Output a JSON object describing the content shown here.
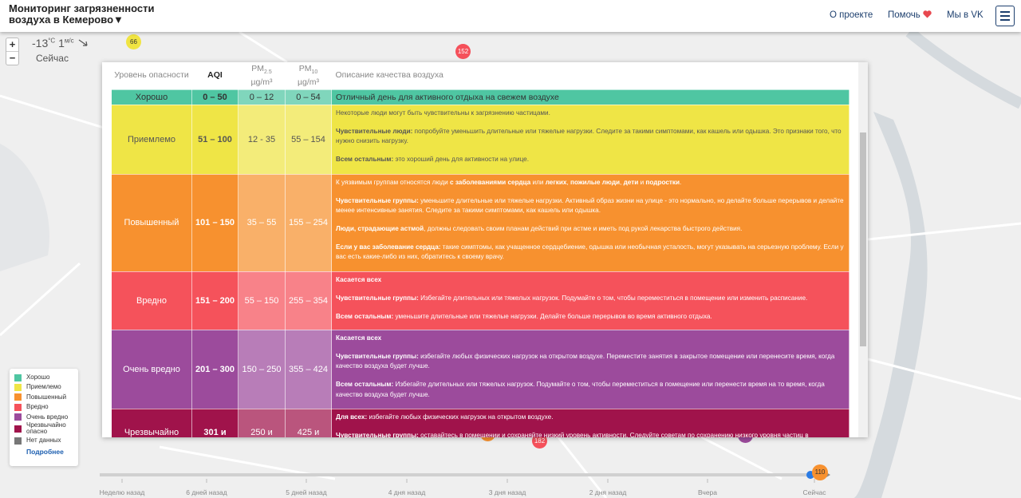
{
  "header": {
    "title_line1": "Мониторинг загрязненности",
    "title_line2": "воздуха в Кемерово▼",
    "nav": [
      "О проекте",
      "Помочь",
      "Мы в VK"
    ]
  },
  "map": {
    "zoom_in": "+",
    "zoom_out": "−",
    "weather": {
      "temp": "-13",
      "temp_unit": "°C",
      "wind": "1",
      "wind_unit": "м/с",
      "time": "Сейчас"
    },
    "markers": [
      {
        "value": "66",
        "color": "#f0e442"
      },
      {
        "value": "152",
        "color": "#f5505a"
      },
      {
        "value": "182",
        "color": "#f5505a"
      }
    ]
  },
  "table": {
    "headers": {
      "level": "Уровень опасности",
      "aqi": "AQI",
      "pm25": {
        "main": "PM",
        "sub": "2.5",
        "unit": "µg/m³"
      },
      "pm10": {
        "main": "PM",
        "sub": "10",
        "unit": "µg/m³"
      },
      "description": "Описание качества воздуха"
    },
    "rows": [
      {
        "level": "Хорошо",
        "aqi": "0 – 50",
        "pm25": "0 – 12",
        "pm10": "0 – 54",
        "color": "#4fc6a2",
        "text_color": "#333333",
        "description": [
          [
            {
              "t": "Отличный день для активного отдыха на свежем воздухе"
            }
          ]
        ]
      },
      {
        "level": "Приемлемо",
        "aqi": "51 – 100",
        "pm25": "12 - 35",
        "pm10": "55 – 154",
        "color": "#efe546",
        "text_color": "#555555",
        "description": [
          [
            {
              "t": "Некоторые люди могут быть чувствительны к загрязнению частицами."
            }
          ],
          [
            {
              "b": "Чувствительные люди:"
            },
            {
              "t": " попробуйте уменьшить длительные или тяжелые нагрузки. Следите за такими симптомами, как кашель или одышка. Это признаки того, что нужно снизить нагрузку."
            }
          ],
          [
            {
              "b": "Всем остальным:"
            },
            {
              "t": " это хороший день для активности на улице."
            }
          ]
        ]
      },
      {
        "level": "Повышенный",
        "aqi": "101 – 150",
        "pm25": "35 – 55",
        "pm10": "155 – 254",
        "color": "#f7912f",
        "text_color": "#ffffff",
        "description": [
          [
            {
              "t": "К уязвимым группам относятся люди "
            },
            {
              "b": "с заболеваниями сердца"
            },
            {
              "t": " или "
            },
            {
              "b": "легких"
            },
            {
              "t": ", "
            },
            {
              "b": "пожилые люди"
            },
            {
              "t": ", "
            },
            {
              "b": "дети"
            },
            {
              "t": " и "
            },
            {
              "b": "подростки"
            },
            {
              "t": "."
            }
          ],
          [
            {
              "b": "Чувствительные группы:"
            },
            {
              "t": " уменьшите длительные или тяжелые нагрузки. Активный образ жизни на улице - это нормально, но делайте больше перерывов и делайте менее интенсивные занятия. Следите за такими симптомами, как кашель или одышка."
            }
          ],
          [
            {
              "b": "Люди, страдающие астмой"
            },
            {
              "t": ", должны следовать своим планам действий при астме и иметь под рукой лекарства быстрого действия."
            }
          ],
          [
            {
              "b": "Если у вас заболевание сердца:"
            },
            {
              "t": " такие симптомы, как учащенное сердцебиение, одышка или необычная усталость, могут указывать на серьезную проблему. Если у вас есть какие-либо из них, обратитесь к своему врачу."
            }
          ]
        ]
      },
      {
        "level": "Вредно",
        "aqi": "151 – 200",
        "pm25": "55 – 150",
        "pm10": "255 – 354",
        "color": "#f5525b",
        "text_color": "#ffffff",
        "description": [
          [
            {
              "b": "Касается всех"
            }
          ],
          [
            {
              "b": "Чувствительные группы:"
            },
            {
              "t": " Избегайте длительных или тяжелых нагрузок. Подумайте о том, чтобы переместиться в помещение или изменить расписание."
            }
          ],
          [
            {
              "b": "Всем остальным:"
            },
            {
              "t": " уменьшите длительные или тяжелые нагрузки. Делайте больше перерывов во время активного отдыха."
            }
          ]
        ]
      },
      {
        "level": "Очень вредно",
        "aqi": "201 – 300",
        "pm25": "150 – 250",
        "pm10": "355 – 424",
        "color": "#9c4b9c",
        "text_color": "#ffffff",
        "description": [
          [
            {
              "b": "Касается всех"
            }
          ],
          [
            {
              "b": "Чувствительные группы:"
            },
            {
              "t": " избегайте любых физических нагрузок на открытом воздухе. Переместите занятия в закрытое помещение или перенесите время, когда качество воздуха будет лучше."
            }
          ],
          [
            {
              "b": "Всем остальным:"
            },
            {
              "t": " Избегайте длительных или тяжелых нагрузок. Подумайте о том, чтобы переместиться в помещение или перенести время на то время, когда качество воздуха будет лучше."
            }
          ]
        ]
      },
      {
        "level": "Чрезвычайно",
        "aqi": "301 и",
        "pm25": "250 и",
        "pm10": "425 и",
        "color": "#a0134b",
        "text_color": "#ffffff",
        "description": [
          [
            {
              "b": "Для всех:"
            },
            {
              "t": " избегайте любых физических нагрузок на открытом воздухе."
            }
          ],
          [
            {
              "b": "Чувствительные группы:"
            },
            {
              "t": " оставайтесь в помещении и сохраняйте низкий уровень активности. Следуйте советам по сохранению низкого уровня частиц в"
            }
          ]
        ]
      }
    ]
  },
  "legend": {
    "items": [
      {
        "label": "Хорошо",
        "color": "#4fc6a2"
      },
      {
        "label": "Приемлемо",
        "color": "#efe546"
      },
      {
        "label": "Повышенный",
        "color": "#f7912f"
      },
      {
        "label": "Вредно",
        "color": "#f5525b"
      },
      {
        "label": "Очень вредно",
        "color": "#9c4b9c"
      },
      {
        "label": "Чрезвычайно опасно",
        "color": "#a0134b"
      },
      {
        "label": "Нет данных",
        "color": "#777777"
      }
    ],
    "more": "Подробнее"
  },
  "timeline": {
    "labels": [
      "Неделю назад",
      "6 дней назад",
      "5 дней назад",
      "4 дня назад",
      "3 дня назад",
      "2 дня назад",
      "Вчера",
      "Сейчас"
    ],
    "current": {
      "value": "110",
      "color": "#f7912f"
    }
  }
}
